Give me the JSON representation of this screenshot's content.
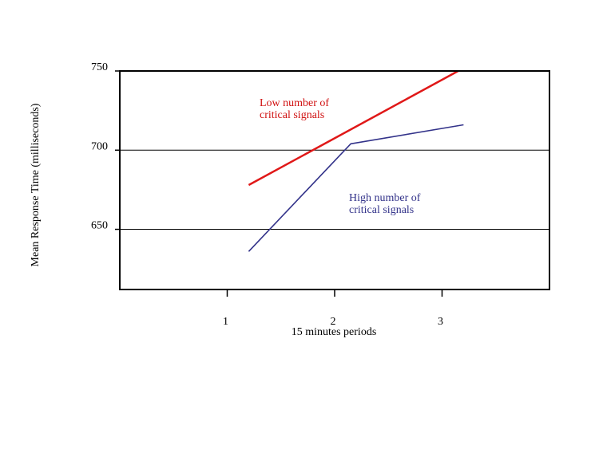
{
  "chart_data": {
    "type": "line",
    "title": "",
    "xlabel": "15 minutes periods",
    "ylabel": "Mean Response Time (milliseconds)",
    "x": [
      1,
      2,
      3
    ],
    "x_ticks": [
      "1",
      "2",
      "3"
    ],
    "y_ticks": [
      "750",
      "700",
      "650"
    ],
    "ylim": [
      612,
      750
    ],
    "xlim": [
      0,
      4
    ],
    "grid": "horizontal at 650 and 700",
    "series": [
      {
        "name": "",
        "label_lines": [
          "Low number of",
          "critical signals"
        ],
        "color": "#e01818",
        "points": [
          [
            1.2,
            678
          ],
          [
            3.15,
            750
          ]
        ]
      },
      {
        "name": "",
        "label_lines": [
          "High number of",
          "critical signals"
        ],
        "color": "#33338a",
        "points": [
          [
            1.2,
            636
          ],
          [
            2.15,
            704
          ],
          [
            3.2,
            716
          ]
        ]
      }
    ]
  }
}
